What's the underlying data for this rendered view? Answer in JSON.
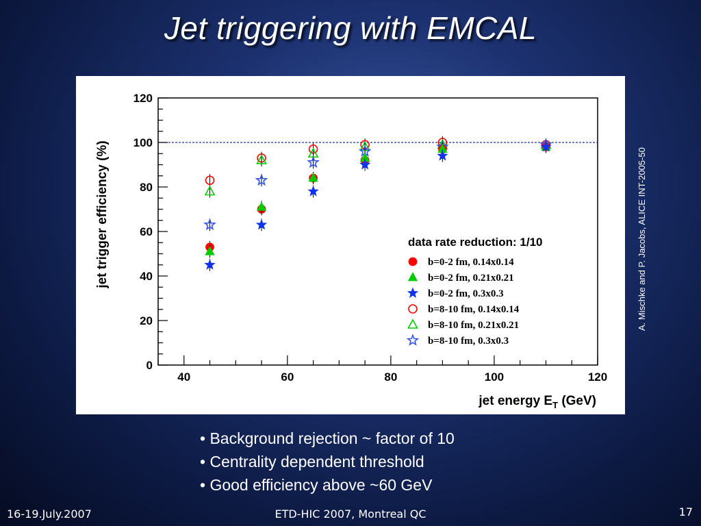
{
  "slide": {
    "title": "Jet triggering with EMCAL",
    "citation": "A. Mischke and P. Jacobs, ALICE INT-2005-50",
    "bullets": [
      "Background rejection ~ factor of 10",
      "Centrality dependent threshold",
      "Good efficiency above ~60 GeV"
    ],
    "footer": {
      "date": "16-19.July.2007",
      "conference": "ETD-HIC 2007, Montreal QC",
      "page": "17"
    }
  },
  "chart_data": {
    "type": "scatter",
    "xlabel_main": "jet energy E",
    "xlabel_sub": "T",
    "xlabel_unit": " (GeV)",
    "ylabel": "jet trigger efficiency (%)",
    "xlim": [
      35,
      120
    ],
    "ylim": [
      0,
      120
    ],
    "xticks": [
      40,
      60,
      80,
      100,
      120
    ],
    "yticks": [
      0,
      20,
      40,
      60,
      80,
      100,
      120
    ],
    "reference_line": {
      "y": 100,
      "style": "dashed",
      "color": "#2233aa"
    },
    "legend_title": "data rate reduction: 1/10",
    "legend_position": "lower-right",
    "series": [
      {
        "name": "b=0-2 fm, 0.14x0.14",
        "marker": "circle-filled",
        "color": "#ff0000",
        "points": [
          [
            45,
            53
          ],
          [
            55,
            70
          ],
          [
            65,
            84
          ],
          [
            75,
            92
          ],
          [
            90,
            97
          ],
          [
            110,
            98
          ]
        ]
      },
      {
        "name": "b=0-2 fm, 0.21x0.21",
        "marker": "triangle-filled",
        "color": "#00cc00",
        "points": [
          [
            45,
            51
          ],
          [
            55,
            71
          ],
          [
            65,
            84
          ],
          [
            75,
            93
          ],
          [
            90,
            97
          ],
          [
            110,
            98
          ]
        ]
      },
      {
        "name": "b=0-2 fm, 0.3x0.3",
        "marker": "star-filled",
        "color": "#1133ee",
        "points": [
          [
            45,
            45
          ],
          [
            55,
            63
          ],
          [
            65,
            78
          ],
          [
            75,
            90
          ],
          [
            90,
            94
          ],
          [
            110,
            98
          ]
        ]
      },
      {
        "name": "b=8-10 fm, 0.14x0.14",
        "marker": "circle-open",
        "color": "#ff0000",
        "points": [
          [
            45,
            83
          ],
          [
            55,
            93
          ],
          [
            65,
            97
          ],
          [
            75,
            99
          ],
          [
            90,
            100
          ],
          [
            110,
            99
          ]
        ]
      },
      {
        "name": "b=8-10 fm, 0.21x0.21",
        "marker": "triangle-open",
        "color": "#00cc00",
        "points": [
          [
            45,
            78
          ],
          [
            55,
            92
          ],
          [
            65,
            95
          ],
          [
            75,
            98
          ],
          [
            90,
            99
          ],
          [
            110,
            99
          ]
        ]
      },
      {
        "name": "b=8-10 fm, 0.3x0.3",
        "marker": "star-open",
        "color": "#3355ee",
        "points": [
          [
            45,
            63
          ],
          [
            55,
            83
          ],
          [
            65,
            91
          ],
          [
            75,
            96
          ],
          [
            90,
            98
          ],
          [
            110,
            99
          ]
        ]
      }
    ]
  }
}
